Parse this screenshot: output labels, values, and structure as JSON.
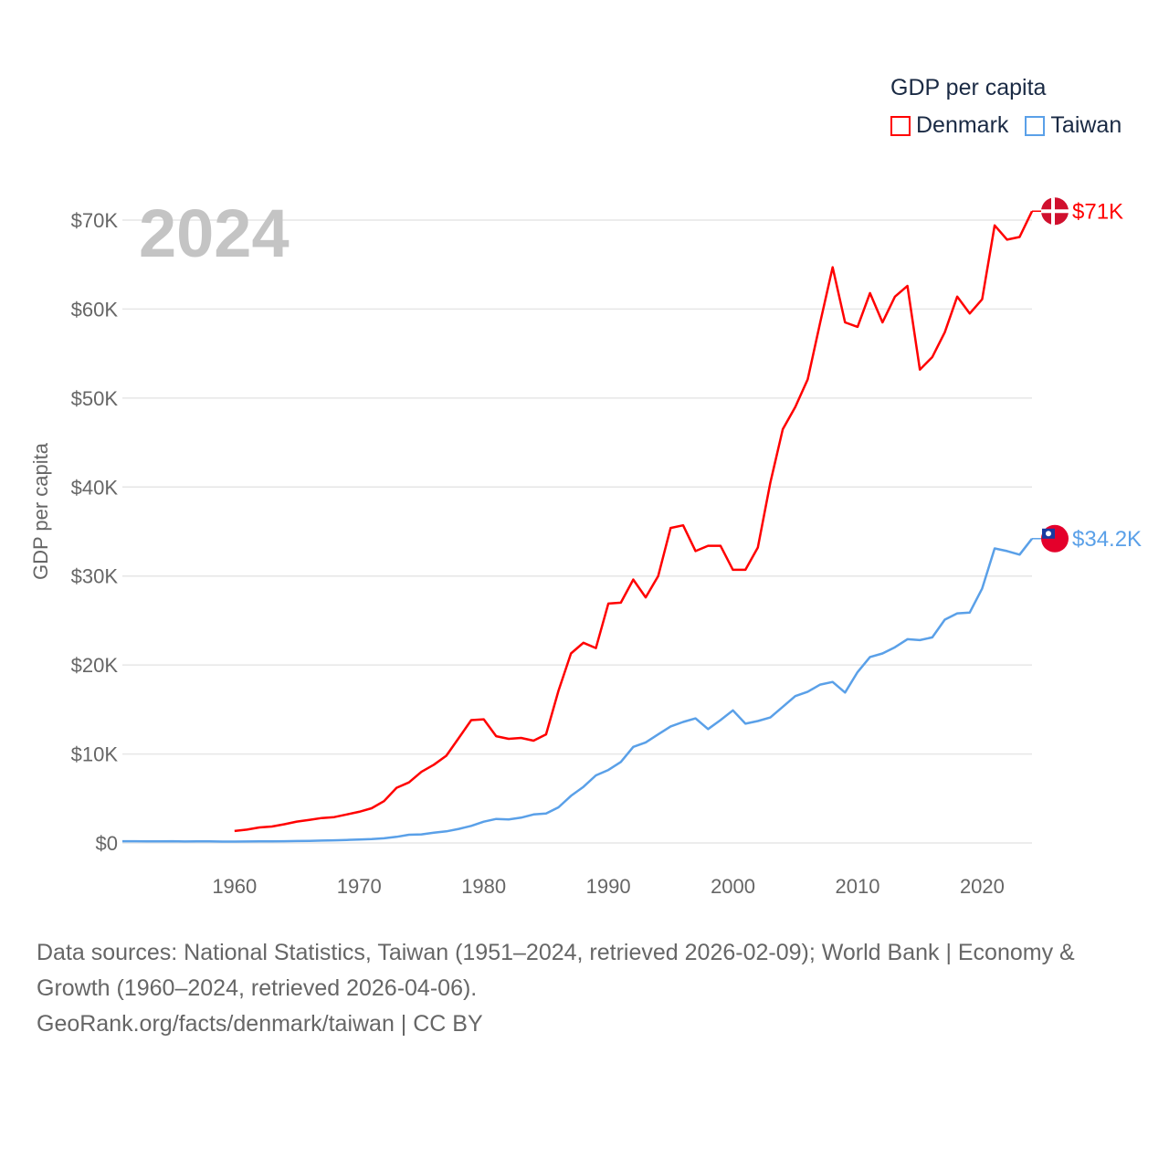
{
  "chart_data": {
    "type": "line",
    "title": "GDP per capita",
    "year_label": "2024",
    "ylabel": "GDP per capita",
    "xlabel": "",
    "xlim": [
      1951,
      2024
    ],
    "ylim": [
      0,
      70000
    ],
    "x_ticks": [
      "1960",
      "1970",
      "1980",
      "1990",
      "2000",
      "2010",
      "2020"
    ],
    "y_ticks": [
      "$0",
      "$10K",
      "$20K",
      "$30K",
      "$40K",
      "$50K",
      "$60K",
      "$70K"
    ],
    "legend": [
      "Denmark",
      "Taiwan"
    ],
    "legend_placement": "top-right",
    "series": [
      {
        "name": "Denmark",
        "color": "#ff0000",
        "start_year": 1960,
        "end_label": "$71K",
        "values": [
          1340,
          1500,
          1750,
          1850,
          2100,
          2400,
          2600,
          2800,
          2900,
          3200,
          3500,
          3900,
          4700,
          6200,
          6800,
          8000,
          8800,
          9800,
          11800,
          13800,
          13900,
          12000,
          11700,
          11800,
          11500,
          12200,
          17100,
          21300,
          22500,
          21900,
          26900,
          27000,
          29600,
          27600,
          30000,
          35400,
          35700,
          32800,
          33400,
          33400,
          30700,
          30700,
          33200,
          40500,
          46500,
          49000,
          52100,
          58500,
          64700,
          58500,
          58000,
          61800,
          58500,
          61400,
          62600,
          53200,
          54600,
          57400,
          61400,
          59500,
          61100,
          69400,
          67800,
          68100,
          71000
        ]
      },
      {
        "name": "Taiwan",
        "color": "#5aa0e8",
        "start_year": 1951,
        "end_label": "$34.2K",
        "values": [
          200,
          200,
          180,
          180,
          200,
          160,
          170,
          180,
          150,
          150,
          160,
          170,
          180,
          200,
          220,
          240,
          270,
          300,
          340,
          390,
          440,
          520,
          690,
          920,
          960,
          1150,
          1300,
          1580,
          1920,
          2390,
          2700,
          2650,
          2840,
          3200,
          3300,
          4000,
          5300,
          6300,
          7600,
          8200,
          9100,
          10800,
          11300,
          12200,
          13100,
          13600,
          14000,
          12800,
          13800,
          14900,
          13400,
          13700,
          14100,
          15300,
          16500,
          17000,
          17800,
          18100,
          16900,
          19200,
          20900,
          21300,
          22000,
          22900,
          22800,
          23100,
          25100,
          25800,
          25900,
          28600,
          33100,
          32800,
          32400,
          34200
        ]
      }
    ]
  },
  "footer": {
    "sources": "Data sources: National Statistics, Taiwan (1951–2024, retrieved 2026-02-09); World Bank | Economy & Growth (1960–2024, retrieved 2026-04-06).",
    "link": "GeoRank.org/facts/denmark/taiwan | CC BY"
  }
}
